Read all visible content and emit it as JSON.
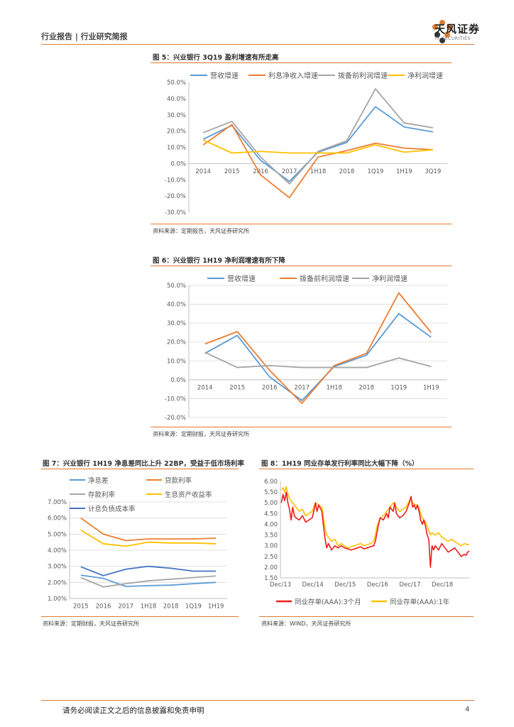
{
  "header": {
    "left_text": "行业报告 | 行业研究简报",
    "brand_name": "天风证券",
    "brand_sub": "TF SECURITIES"
  },
  "footer": {
    "disclaimer": "请务必阅读正文之后的信息披露和免责申明",
    "page_number": "4"
  },
  "colors": {
    "accent": "#e07a30",
    "blue": "#5b9bd5",
    "orange": "#ed7d31",
    "gray": "#a5a5a5",
    "yellow": "#ffc000",
    "red": "#ee1c1c",
    "navy": "#4472c4"
  },
  "chart_data": [
    {
      "id": "fig5",
      "type": "line",
      "title": "图 5：兴业银行 3Q19 盈利增速有所走高",
      "source": "资料来源：定期报告，天风证券研究所",
      "categories": [
        "2014",
        "2015",
        "2016",
        "2017",
        "1H18",
        "2018",
        "1Q19",
        "1H19",
        "3Q19"
      ],
      "y_ticks": [
        "50.0%",
        "40.0%",
        "30.0%",
        "20.0%",
        "10.0%",
        "0.0%",
        "-10.0%",
        "-20.0%",
        "-30.0%"
      ],
      "ylim": [
        -30,
        50
      ],
      "series": [
        {
          "name": "营收增速",
          "color": "#5b9bd5",
          "values": [
            15,
            23.5,
            2,
            -11,
            7,
            13,
            35,
            22.5,
            19.5
          ]
        },
        {
          "name": "利息净收入增速",
          "color": "#ed7d31",
          "values": [
            11.5,
            24,
            -7,
            -21,
            4,
            8,
            12.5,
            9.5,
            8.5
          ]
        },
        {
          "name": "拨备前利润增速",
          "color": "#a5a5a5",
          "values": [
            19,
            26,
            4,
            -12.5,
            7.5,
            14,
            46,
            25,
            22
          ]
        },
        {
          "name": "净利润增速",
          "color": "#ffc000",
          "values": [
            14.5,
            6.5,
            7.5,
            6.5,
            6.5,
            6.5,
            11.5,
            7,
            8.5
          ]
        }
      ]
    },
    {
      "id": "fig6",
      "type": "line",
      "title": "图 6：兴业银行 1H19 净利润增速有所下降",
      "source": "资料来源：定期财报，天风证券研究所",
      "categories": [
        "2014",
        "2015",
        "2016",
        "2017",
        "1H18",
        "2018",
        "1Q19",
        "1H19"
      ],
      "y_ticks": [
        "50.0%",
        "40.0%",
        "30.0%",
        "20.0%",
        "10.0%",
        "0.0%",
        "-10.0%",
        "-20.0%"
      ],
      "ylim": [
        -20,
        50
      ],
      "series": [
        {
          "name": "营收增速",
          "color": "#5b9bd5",
          "values": [
            14,
            23.5,
            1.5,
            -11,
            7,
            13,
            35,
            22.5
          ]
        },
        {
          "name": "拨备前利润增速",
          "color": "#ed7d31",
          "values": [
            19,
            25.5,
            5,
            -12.5,
            7.5,
            14,
            46,
            25
          ]
        },
        {
          "name": "净利润增速",
          "color": "#a5a5a5",
          "values": [
            14.5,
            6.5,
            7.5,
            6.5,
            6.5,
            6.5,
            11.5,
            7
          ]
        }
      ]
    },
    {
      "id": "fig7",
      "type": "line",
      "title": "图 7：兴业银行 1H19 净息差同比上升 22BP，受益于低市场利率",
      "source": "资料来源：定期财报，天风证券研究所",
      "categories": [
        "2015",
        "2016",
        "2017",
        "1H18",
        "2018",
        "1Q19",
        "1H19"
      ],
      "y_ticks": [
        "7.00%",
        "6.00%",
        "5.00%",
        "4.00%",
        "3.00%",
        "2.00%",
        "1.00%"
      ],
      "ylim": [
        1,
        7
      ],
      "series": [
        {
          "name": "净息差",
          "color": "#5b9bd5",
          "values": [
            2.45,
            2.25,
            1.75,
            1.8,
            1.83,
            1.92,
            2.0
          ]
        },
        {
          "name": "贷款利率",
          "color": "#ed7d31",
          "values": [
            6.0,
            5.0,
            4.6,
            4.7,
            4.7,
            4.7,
            4.75
          ]
        },
        {
          "name": "存款利率",
          "color": "#a5a5a5",
          "values": [
            2.3,
            1.72,
            1.92,
            2.1,
            2.2,
            2.3,
            2.4
          ]
        },
        {
          "name": "生息资产收益率",
          "color": "#ffc000",
          "values": [
            5.25,
            4.4,
            4.25,
            4.5,
            4.45,
            4.45,
            4.4
          ]
        },
        {
          "name": "计息负债成本率",
          "color": "#4472c4",
          "values": [
            2.97,
            2.42,
            2.82,
            3.0,
            2.88,
            2.7,
            2.7
          ]
        }
      ]
    },
    {
      "id": "fig8",
      "type": "line",
      "title": "图 8：1H19 同业存单发行利率同比大幅下降（%）",
      "source": "资料来源：WIND，天风证券研究所",
      "x_ticks": [
        "Dec/13",
        "Dec/14",
        "Dec/15",
        "Dec/16",
        "Dec/17",
        "Dec/18"
      ],
      "x_range": [
        2013.92,
        2019.75
      ],
      "y_ticks": [
        "6.00",
        "5.50",
        "5.00",
        "4.50",
        "4.00",
        "3.50",
        "3.00",
        "2.50",
        "2.00",
        "1.50"
      ],
      "ylim": [
        1.5,
        6
      ],
      "series": [
        {
          "name": "同业存单(AAA):3个月",
          "color": "#ee1c1c",
          "points": [
            [
              2013.95,
              5.0
            ],
            [
              2014.0,
              5.4
            ],
            [
              2014.05,
              5.1
            ],
            [
              2014.1,
              5.5
            ],
            [
              2014.15,
              5.0
            ],
            [
              2014.2,
              4.7
            ],
            [
              2014.25,
              4.2
            ],
            [
              2014.3,
              4.8
            ],
            [
              2014.35,
              4.4
            ],
            [
              2014.4,
              4.3
            ],
            [
              2014.5,
              4.2
            ],
            [
              2014.6,
              4.4
            ],
            [
              2014.7,
              4.1
            ],
            [
              2014.8,
              4.2
            ],
            [
              2014.9,
              4.3
            ],
            [
              2014.95,
              4.6
            ],
            [
              2015.0,
              5.0
            ],
            [
              2015.05,
              4.6
            ],
            [
              2015.1,
              4.9
            ],
            [
              2015.2,
              4.6
            ],
            [
              2015.25,
              3.9
            ],
            [
              2015.3,
              3.3
            ],
            [
              2015.35,
              2.9
            ],
            [
              2015.4,
              3.1
            ],
            [
              2015.5,
              2.8
            ],
            [
              2015.6,
              3.0
            ],
            [
              2015.7,
              2.9
            ],
            [
              2015.8,
              3.0
            ],
            [
              2015.9,
              2.9
            ],
            [
              2016.0,
              2.85
            ],
            [
              2016.1,
              2.8
            ],
            [
              2016.2,
              2.85
            ],
            [
              2016.3,
              2.9
            ],
            [
              2016.4,
              2.95
            ],
            [
              2016.5,
              2.85
            ],
            [
              2016.6,
              2.9
            ],
            [
              2016.7,
              2.95
            ],
            [
              2016.8,
              3.0
            ],
            [
              2016.85,
              3.2
            ],
            [
              2016.9,
              3.6
            ],
            [
              2016.95,
              4.0
            ],
            [
              2017.0,
              4.3
            ],
            [
              2017.1,
              4.2
            ],
            [
              2017.2,
              4.5
            ],
            [
              2017.25,
              4.3
            ],
            [
              2017.3,
              4.8
            ],
            [
              2017.4,
              4.6
            ],
            [
              2017.45,
              5.0
            ],
            [
              2017.5,
              4.5
            ],
            [
              2017.6,
              4.3
            ],
            [
              2017.7,
              4.4
            ],
            [
              2017.8,
              4.6
            ],
            [
              2017.9,
              5.0
            ],
            [
              2017.95,
              5.3
            ],
            [
              2018.0,
              4.8
            ],
            [
              2018.05,
              4.9
            ],
            [
              2018.1,
              4.7
            ],
            [
              2018.15,
              4.9
            ],
            [
              2018.2,
              4.6
            ],
            [
              2018.25,
              4.2
            ],
            [
              2018.3,
              4.0
            ],
            [
              2018.35,
              4.2
            ],
            [
              2018.4,
              3.9
            ],
            [
              2018.45,
              3.5
            ],
            [
              2018.5,
              3.3
            ],
            [
              2018.55,
              2.0
            ],
            [
              2018.6,
              3.0
            ],
            [
              2018.65,
              2.8
            ],
            [
              2018.7,
              3.0
            ],
            [
              2018.8,
              2.8
            ],
            [
              2018.9,
              3.1
            ],
            [
              2019.0,
              2.9
            ],
            [
              2019.1,
              2.7
            ],
            [
              2019.2,
              2.8
            ],
            [
              2019.3,
              2.9
            ],
            [
              2019.4,
              2.7
            ],
            [
              2019.5,
              2.5
            ],
            [
              2019.6,
              2.6
            ],
            [
              2019.65,
              2.55
            ],
            [
              2019.7,
              2.7
            ],
            [
              2019.75,
              2.75
            ]
          ]
        },
        {
          "name": "同业存单(AAA):1年",
          "color": "#ffc000",
          "points": [
            [
              2013.95,
              5.6
            ],
            [
              2014.0,
              5.7
            ],
            [
              2014.05,
              5.5
            ],
            [
              2014.1,
              5.75
            ],
            [
              2014.15,
              5.4
            ],
            [
              2014.2,
              5.2
            ],
            [
              2014.3,
              5.0
            ],
            [
              2014.4,
              4.8
            ],
            [
              2014.5,
              4.6
            ],
            [
              2014.6,
              4.7
            ],
            [
              2014.7,
              4.4
            ],
            [
              2014.8,
              4.5
            ],
            [
              2014.9,
              4.6
            ],
            [
              2014.95,
              4.8
            ],
            [
              2015.0,
              5.0
            ],
            [
              2015.1,
              4.9
            ],
            [
              2015.2,
              4.8
            ],
            [
              2015.25,
              4.3
            ],
            [
              2015.3,
              3.8
            ],
            [
              2015.35,
              3.5
            ],
            [
              2015.4,
              3.4
            ],
            [
              2015.5,
              3.2
            ],
            [
              2015.6,
              3.3
            ],
            [
              2015.7,
              3.0
            ],
            [
              2015.8,
              3.1
            ],
            [
              2015.9,
              3.0
            ],
            [
              2016.0,
              2.9
            ],
            [
              2016.1,
              2.95
            ],
            [
              2016.2,
              3.0
            ],
            [
              2016.3,
              3.05
            ],
            [
              2016.4,
              3.1
            ],
            [
              2016.5,
              3.0
            ],
            [
              2016.6,
              3.05
            ],
            [
              2016.7,
              3.1
            ],
            [
              2016.8,
              3.2
            ],
            [
              2016.85,
              3.5
            ],
            [
              2016.9,
              3.9
            ],
            [
              2016.95,
              4.1
            ],
            [
              2017.0,
              4.3
            ],
            [
              2017.1,
              4.4
            ],
            [
              2017.2,
              4.6
            ],
            [
              2017.3,
              4.8
            ],
            [
              2017.4,
              5.0
            ],
            [
              2017.5,
              4.8
            ],
            [
              2017.6,
              4.6
            ],
            [
              2017.7,
              4.7
            ],
            [
              2017.8,
              4.8
            ],
            [
              2017.9,
              5.1
            ],
            [
              2017.95,
              5.2
            ],
            [
              2018.0,
              5.0
            ],
            [
              2018.1,
              4.9
            ],
            [
              2018.2,
              4.8
            ],
            [
              2018.25,
              4.5
            ],
            [
              2018.3,
              4.3
            ],
            [
              2018.4,
              4.1
            ],
            [
              2018.5,
              3.7
            ],
            [
              2018.55,
              3.5
            ],
            [
              2018.6,
              3.6
            ],
            [
              2018.7,
              3.5
            ],
            [
              2018.8,
              3.6
            ],
            [
              2018.9,
              3.4
            ],
            [
              2019.0,
              3.3
            ],
            [
              2019.1,
              3.2
            ],
            [
              2019.2,
              3.3
            ],
            [
              2019.3,
              3.2
            ],
            [
              2019.4,
              3.1
            ],
            [
              2019.5,
              3.0
            ],
            [
              2019.6,
              3.1
            ],
            [
              2019.7,
              3.05
            ],
            [
              2019.75,
              3.05
            ]
          ]
        }
      ]
    }
  ]
}
